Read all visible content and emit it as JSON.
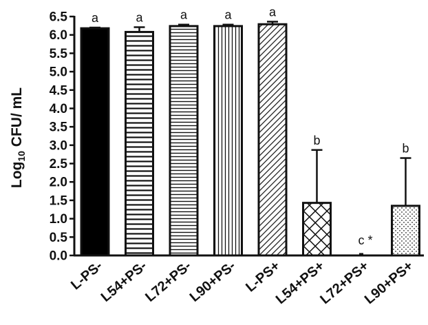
{
  "chart_data": {
    "type": "bar",
    "title": "",
    "ylabel": {
      "prefix": "Log",
      "subscript": "10",
      "suffix": " CFU/ mL"
    },
    "xlabel": "",
    "ylim": [
      0,
      6.5
    ],
    "yticks": [
      "0.0",
      "0.5",
      "1.0",
      "1.5",
      "2.0",
      "2.5",
      "3.0",
      "3.5",
      "4.0",
      "4.5",
      "5.0",
      "5.5",
      "6.0",
      "6.5"
    ],
    "categories": [
      "L-PS-",
      "L54+PS-",
      "L72+PS-",
      "L90+PS-",
      "L-PS+",
      "L54+PS+",
      "L72+PS+",
      "L90+PS+"
    ],
    "values": [
      6.18,
      6.08,
      6.24,
      6.24,
      6.29,
      1.43,
      0,
      1.35
    ],
    "errors": [
      0.02,
      0.13,
      0.04,
      0.04,
      0.07,
      1.44,
      0,
      1.3
    ],
    "significance_labels": [
      "a",
      "a",
      "a",
      "a",
      "a",
      "b",
      "c *",
      "b"
    ],
    "fill_patterns": [
      "solid-black",
      "horizontal-lines",
      "horizontal-lines-dense",
      "vertical-lines",
      "diagonal-lines",
      "crosshatch",
      "none",
      "dots"
    ],
    "grid": false,
    "legend": "none"
  }
}
